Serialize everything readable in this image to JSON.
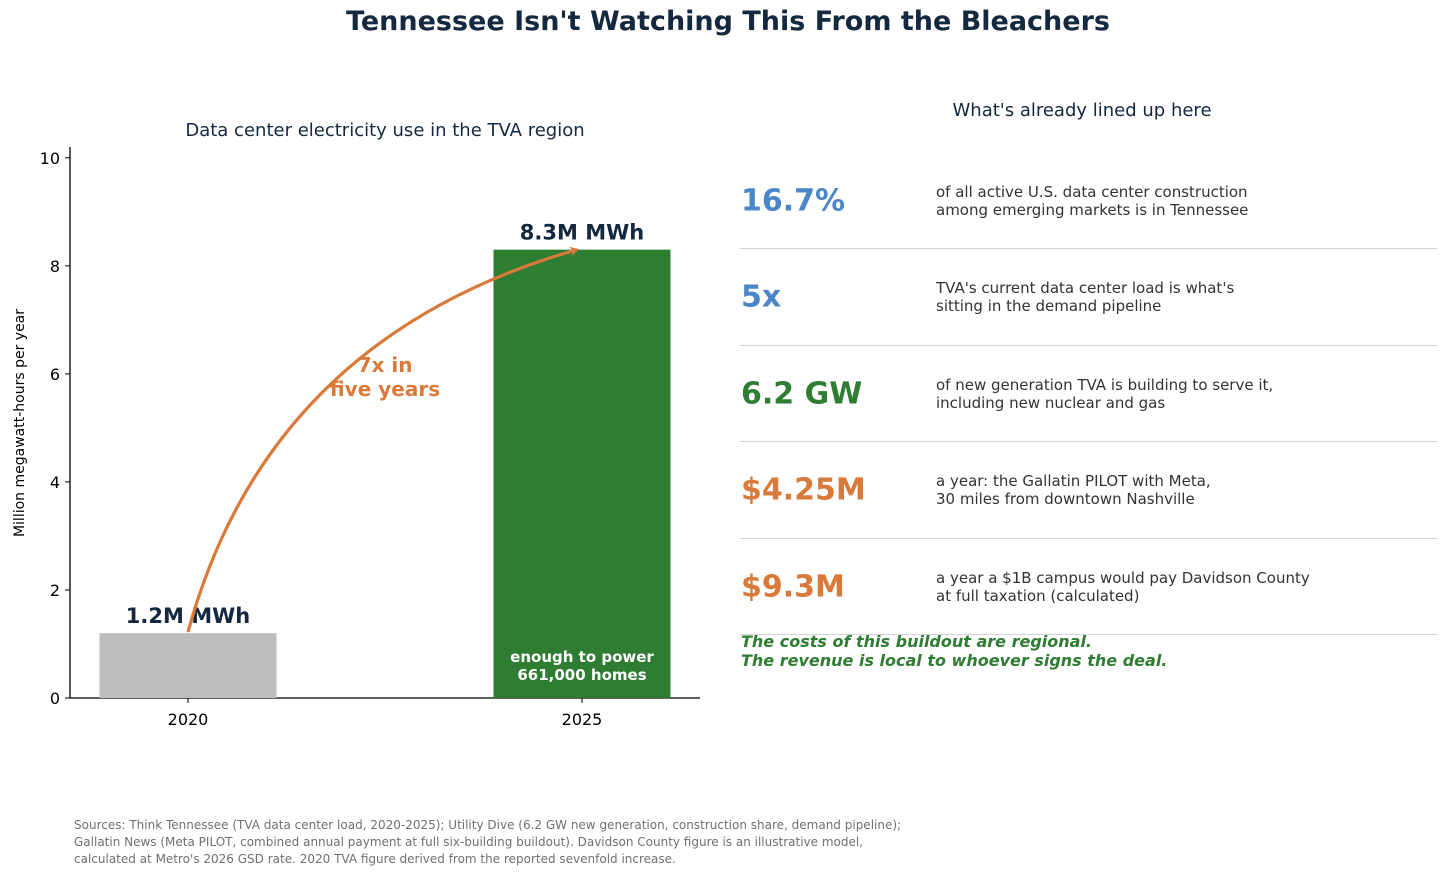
{
  "title": "Tennessee Isn't Watching This From the Bleachers",
  "chart_data": {
    "type": "bar",
    "title": "Data center electricity use in the TVA region",
    "ylabel": "Million megawatt-hours per year",
    "xlabel": "",
    "categories": [
      "2020",
      "2025"
    ],
    "values": [
      1.2,
      8.3
    ],
    "value_labels": [
      "1.2M MWh",
      "8.3M MWh"
    ],
    "bar_colors": [
      "#bdbdbd",
      "#2e7d32"
    ],
    "ylim": [
      0,
      10.2
    ],
    "yticks": [
      0,
      2,
      4,
      6,
      8,
      10
    ],
    "grid": false,
    "annotations": [
      {
        "text_lines": [
          "7x in",
          "five years"
        ],
        "color": "#d97a3a",
        "arrow": "from 2020 bar to 2025 bar"
      },
      {
        "text_lines": [
          "enough to power",
          "661,000 homes"
        ],
        "color": "#ffffff",
        "inside_bar": "2025"
      }
    ]
  },
  "stats_panel": {
    "title": "What's already lined up here",
    "rows": [
      {
        "value": "16.7%",
        "color": "#4a86c8",
        "desc": "of all active U.S. data center construction\namong emerging markets is in Tennessee"
      },
      {
        "value": "5x",
        "color": "#4a86c8",
        "desc": "TVA's current data center load is what's\nsitting in the demand pipeline"
      },
      {
        "value": "6.2 GW",
        "color": "#2e7d32",
        "desc": "of new generation TVA is building to serve it,\nincluding new nuclear and gas"
      },
      {
        "value": "$4.25M",
        "color": "#d97a3a",
        "desc": "a year: the Gallatin PILOT with Meta,\n30 miles from downtown Nashville"
      },
      {
        "value": "$9.3M",
        "color": "#d97a3a",
        "desc": "a year a $1B campus would pay Davidson County\nat full taxation (calculated)"
      }
    ],
    "tagline_lines": [
      "The costs of this buildout are regional.",
      "The revenue is local to whoever signs the deal."
    ]
  },
  "sources_lines": [
    "Sources: Think Tennessee (TVA data center load, 2020-2025); Utility Dive (6.2 GW new generation, construction share, demand pipeline);",
    "Gallatin News (Meta PILOT, combined annual payment at full six-building buildout). Davidson County figure is an illustrative model,",
    "calculated at Metro's 2026 GSD rate. 2020 TVA figure derived from the reported sevenfold increase."
  ]
}
